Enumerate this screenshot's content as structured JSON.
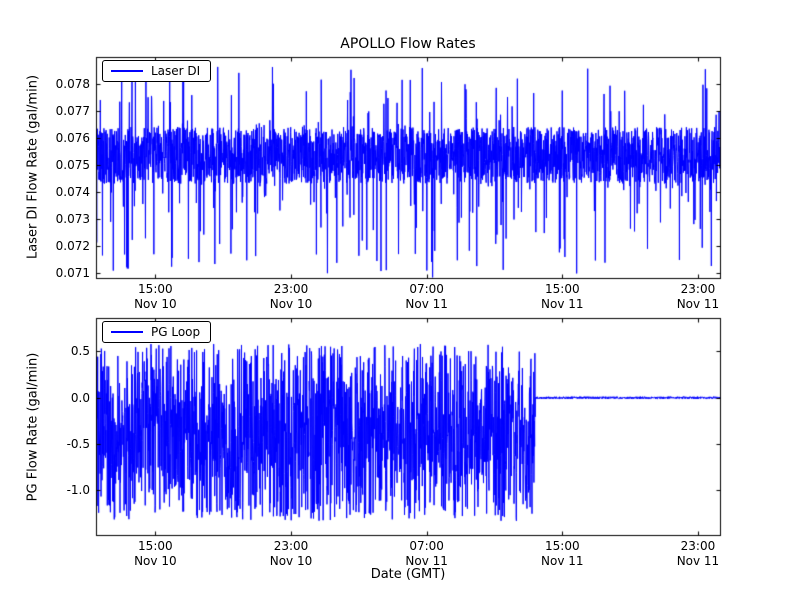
{
  "figure": {
    "background": "#ffffff",
    "frame_color": "#000000"
  },
  "chart_data": [
    {
      "type": "line",
      "title": "APOLLO Flow Rates",
      "ylabel": "Laser DI Flow Rate (gal/min)",
      "xlabel": "",
      "legend": {
        "label": "Laser DI",
        "position": "upper left"
      },
      "grid": false,
      "x_unit": "hours from Nov 10 00:00 GMT",
      "xlim": [
        11.5,
        48.3
      ],
      "ylim": [
        0.0708,
        0.079
      ],
      "xticks": [
        {
          "hour": 15,
          "time": "15:00",
          "date": "Nov 10"
        },
        {
          "hour": 23,
          "time": "23:00",
          "date": "Nov 10"
        },
        {
          "hour": 31,
          "time": "07:00",
          "date": "Nov 11"
        },
        {
          "hour": 39,
          "time": "15:00",
          "date": "Nov 11"
        },
        {
          "hour": 47,
          "time": "23:00",
          "date": "Nov 11"
        }
      ],
      "yticks": [
        {
          "value": 0.071,
          "label": "0.071"
        },
        {
          "value": 0.072,
          "label": "0.072"
        },
        {
          "value": 0.073,
          "label": "0.073"
        },
        {
          "value": 0.074,
          "label": "0.074"
        },
        {
          "value": 0.075,
          "label": "0.075"
        },
        {
          "value": 0.076,
          "label": "0.076"
        },
        {
          "value": 0.077,
          "label": "0.077"
        },
        {
          "value": 0.078,
          "label": "0.078"
        }
      ],
      "series": [
        {
          "name": "Laser DI",
          "color": "#0000ff",
          "signal": {
            "kind": "noisy-band-with-spikes",
            "description": "dense noise band ~0.0743-0.0764 gal/min with frequent spikes up to ~0.0788 and down to ~0.0708 across entire time range",
            "samples": 2600,
            "seed": 12345,
            "band": [
              0.0743,
              0.0764
            ],
            "spike_up": {
              "prob": 0.045,
              "min": 0.076,
              "max": 0.0788
            },
            "spike_down": {
              "prob": 0.07,
              "min": 0.0708,
              "max": 0.0746
            }
          }
        }
      ]
    },
    {
      "type": "line",
      "title": "",
      "ylabel": "PG Flow Rate (gal/min)",
      "xlabel": "Date (GMT)",
      "legend": {
        "label": "PG Loop",
        "position": "upper left"
      },
      "grid": false,
      "x_unit": "hours from Nov 10 00:00 GMT",
      "xlim": [
        11.5,
        48.3
      ],
      "ylim": [
        -1.48,
        0.86
      ],
      "xticks": [
        {
          "hour": 15,
          "time": "15:00",
          "date": "Nov 10"
        },
        {
          "hour": 23,
          "time": "23:00",
          "date": "Nov 10"
        },
        {
          "hour": 31,
          "time": "07:00",
          "date": "Nov 11"
        },
        {
          "hour": 39,
          "time": "15:00",
          "date": "Nov 11"
        },
        {
          "hour": 47,
          "time": "23:00",
          "date": "Nov 11"
        }
      ],
      "yticks": [
        {
          "value": -1.0,
          "label": "-1.0"
        },
        {
          "value": -0.5,
          "label": "-0.5"
        },
        {
          "value": 0.0,
          "label": "0.0"
        },
        {
          "value": 0.5,
          "label": "0.5"
        }
      ],
      "series": [
        {
          "name": "PG Loop",
          "color": "#0000ff",
          "signal": {
            "kind": "noisy-until-cutoff",
            "description": "heavy noise between ~-1.33 and ~0.58 gal/min centered near -0.4 until ~13:30 Nov 11, then flat at ~0.0",
            "samples": 2600,
            "seed": 777,
            "center": -0.4,
            "band": [
              -1.33,
              0.58
            ],
            "cutoff_hour": 37.4,
            "after_value": 0.0,
            "after_noise": 0.012
          }
        }
      ]
    }
  ]
}
